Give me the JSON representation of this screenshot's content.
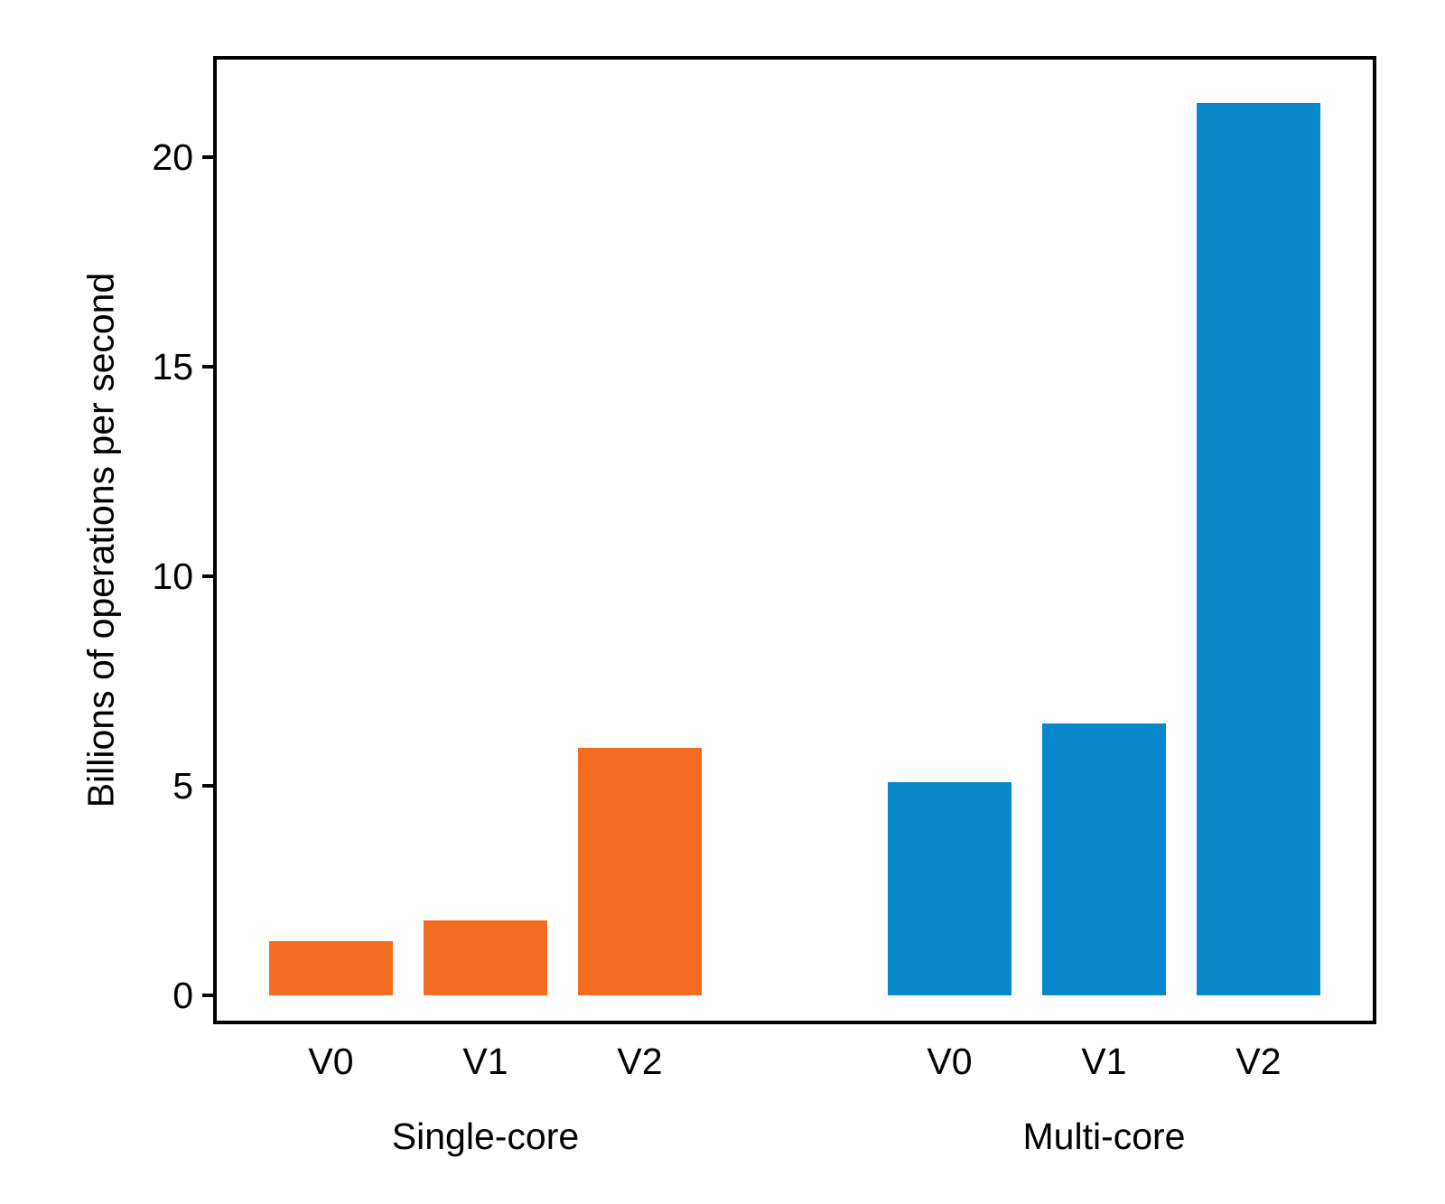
{
  "figure": {
    "background": "#ffffff",
    "axis_color": "#000000",
    "text_color": "#000000"
  },
  "chart_data": {
    "type": "bar",
    "title": "",
    "ylabel": "Billions of operations per second",
    "xlabel": "",
    "categories": [
      "V0",
      "V1",
      "V2"
    ],
    "series": [
      {
        "name": "Single-core",
        "color": "#f26c21",
        "values": [
          1.3,
          1.8,
          5.9
        ]
      },
      {
        "name": "Multi-core",
        "color": "#0887cb",
        "values": [
          5.1,
          6.5,
          21.3
        ]
      }
    ],
    "yticks": [
      0,
      5,
      10,
      15,
      20
    ],
    "ylim": [
      -0.6,
      22.33
    ],
    "grid": false,
    "legend": "none",
    "layout_hint": "two separated groups of three bars; group names under category ticks"
  }
}
